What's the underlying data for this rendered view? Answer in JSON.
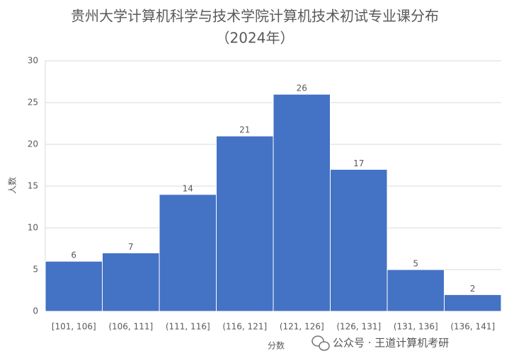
{
  "chart_data": {
    "type": "bar",
    "title": "贵州大学计算机科学与技术学院计算机技术初试专业课分布",
    "subtitle": "（2024年）",
    "x_label": "分数",
    "y_label": "人数",
    "categories": [
      "[101, 106]",
      "(106, 111]",
      "(111, 116]",
      "(116, 121]",
      "(121, 126]",
      "(126, 131]",
      "(131, 136]",
      "(136, 141]"
    ],
    "values": [
      6,
      7,
      14,
      21,
      26,
      17,
      5,
      2
    ],
    "color": "#4472c4",
    "ylim": [
      0,
      30
    ],
    "yticks": [
      0,
      5,
      10,
      15,
      20,
      25,
      30
    ],
    "grid": true,
    "watermark": "公众号 · 王道计算机考研"
  }
}
